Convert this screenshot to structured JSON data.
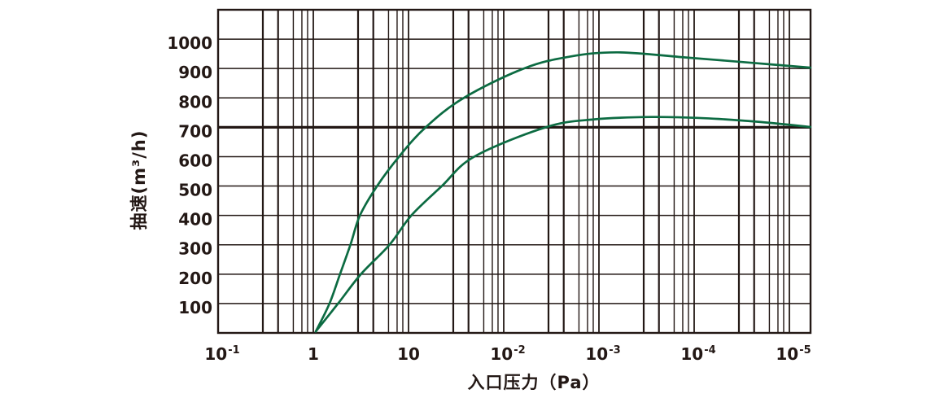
{
  "chart_data": {
    "type": "line",
    "title": "",
    "xlabel": "入口压力（Pa）",
    "ylabel": "抽速(m³/h)",
    "x_scale": "log-decades",
    "x_unit_note": "x given as decade index: 0 = first gridline (labeled 10⁻¹), 1 decade per labeled tick, right border ≈ 6.22",
    "x_ticks": [
      {
        "base": "10",
        "exp": "-1"
      },
      {
        "base": "1",
        "exp": ""
      },
      {
        "base": "10",
        "exp": ""
      },
      {
        "base": "10",
        "exp": "-2"
      },
      {
        "base": "10",
        "exp": "-3"
      },
      {
        "base": "10",
        "exp": "-4"
      },
      {
        "base": "10",
        "exp": "-5"
      }
    ],
    "y_ticks": [
      100,
      200,
      300,
      400,
      500,
      600,
      700,
      800,
      900,
      1000
    ],
    "ylim": [
      0,
      1100
    ],
    "x_decades_total": 6.22,
    "grid": {
      "minor_fractions": [
        0.47,
        0.63,
        0.79,
        0.88,
        0.94
      ],
      "minor_widths": [
        2.2,
        2.2,
        1.4,
        1.4,
        1.4
      ],
      "decade_width": 1.8,
      "h_width": 1.5,
      "emphasized_y_value": 700,
      "emphasized_y_width": 3.2,
      "border_width": 2.4
    },
    "series": [
      {
        "name": "upper-curve",
        "color": "#0c6b42",
        "points": [
          [
            1.026,
            5
          ],
          [
            1.17,
            100
          ],
          [
            1.28,
            200
          ],
          [
            1.39,
            300
          ],
          [
            1.49,
            400
          ],
          [
            1.67,
            500
          ],
          [
            1.9,
            600
          ],
          [
            2.18,
            700
          ],
          [
            2.58,
            800
          ],
          [
            3.21,
            900
          ],
          [
            3.7,
            941
          ],
          [
            4.2,
            955
          ],
          [
            4.9,
            938
          ],
          [
            5.66,
            918
          ],
          [
            6.22,
            903
          ]
        ]
      },
      {
        "name": "lower-curve",
        "color": "#0c6b42",
        "points": [
          [
            1.026,
            5
          ],
          [
            1.26,
            100
          ],
          [
            1.5,
            200
          ],
          [
            1.8,
            300
          ],
          [
            2.03,
            400
          ],
          [
            2.35,
            500
          ],
          [
            2.69,
            600
          ],
          [
            3.44,
            700
          ],
          [
            3.95,
            727
          ],
          [
            4.55,
            735
          ],
          [
            5.1,
            731
          ],
          [
            5.66,
            719
          ],
          [
            6.22,
            701
          ]
        ]
      }
    ],
    "colors": {
      "ink": "#231815",
      "curve": "#0c6b42",
      "background": "#ffffff"
    }
  }
}
